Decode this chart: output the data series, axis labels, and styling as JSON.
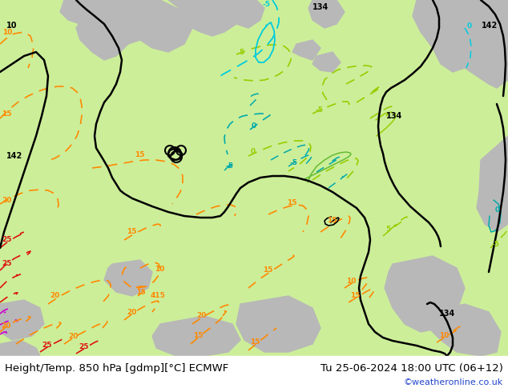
{
  "title_left": "Height/Temp. 850 hPa [gdmp][°C] ECMWF",
  "title_right": "Tu 25-06-2024 18:00 UTC (06+12)",
  "credit": "©weatheronline.co.uk",
  "bg_color": "#d8e8d0",
  "land_light_green": "#ccee99",
  "land_gray": "#b8b8b8",
  "water_light": "#e0e8e0",
  "title_fontsize": 9.5,
  "credit_color": "#2244cc",
  "fig_width": 6.34,
  "fig_height": 4.9,
  "dpi": 100,
  "orange": "#ff8800",
  "orange2": "#ffaa00",
  "red": "#dd1111",
  "magenta": "#cc00cc",
  "green1": "#99cc00",
  "green2": "#66bb33",
  "teal": "#00aaaa",
  "cyan": "#00ccdd",
  "black": "#000000",
  "white": "#ffffff"
}
